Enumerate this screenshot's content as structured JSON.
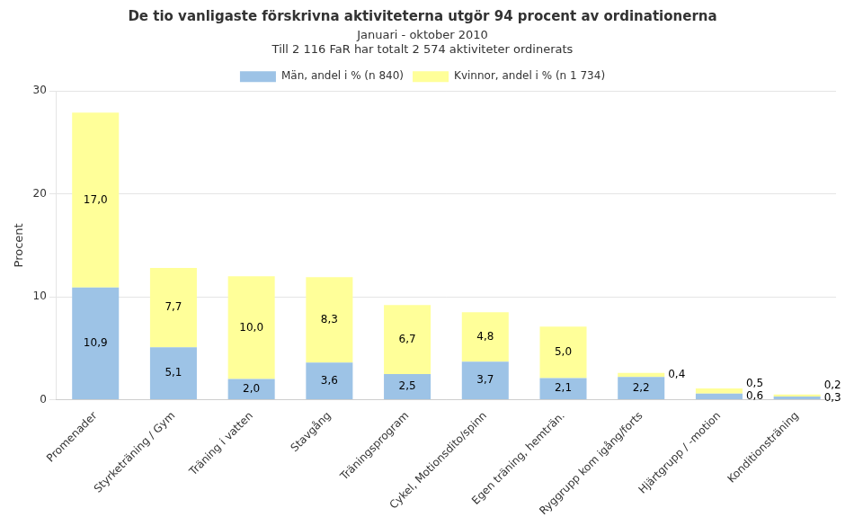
{
  "chart_data": {
    "type": "bar",
    "title": "De tio vanligaste förskrivna aktiviteterna utgör 94 procent av ordinationerna",
    "subtitle": [
      "Januari - oktober 2010",
      "Till 2 116 FaR har totalt 2 574 aktiviteter ordinerats"
    ],
    "y_label": "Procent",
    "categories": [
      "Promenader",
      "Styrketräning / Gym",
      "Träning i vatten",
      "Stavgång",
      "Träningsprogram",
      "Cykel, Motionsdito/spinn",
      "Egen träning, hemträn.",
      "Ryggrupp kom igång/forts",
      "Hjärtgrupp / -motion",
      "Konditionsträning"
    ],
    "series": [
      {
        "name": "Män, andel i % (n 840)",
        "color": "#9DC3E6",
        "values": [
          10.9,
          5.1,
          2.0,
          3.6,
          2.5,
          3.7,
          2.1,
          2.2,
          0.6,
          0.3
        ],
        "value_labels": [
          "10,9",
          "5,1",
          "2,0",
          "3,6",
          "2,5",
          "3,7",
          "2,1",
          "2,2",
          "0,6",
          "0,3"
        ]
      },
      {
        "name": "Kvinnor, andel i % (n 1 734)",
        "color": "#FFFF99",
        "values": [
          17.0,
          7.7,
          10.0,
          8.3,
          6.7,
          4.8,
          5.0,
          0.4,
          0.5,
          0.2
        ],
        "value_labels": [
          "17,0",
          "7,7",
          "10,0",
          "8,3",
          "6,7",
          "4,8",
          "5,0",
          "0,4",
          "0,5",
          "0,2"
        ]
      }
    ],
    "stacked": true,
    "data_labels": true,
    "ylim": [
      0,
      30
    ],
    "yticks": [
      0,
      10,
      20,
      30
    ],
    "grid": true,
    "legend": "top"
  }
}
